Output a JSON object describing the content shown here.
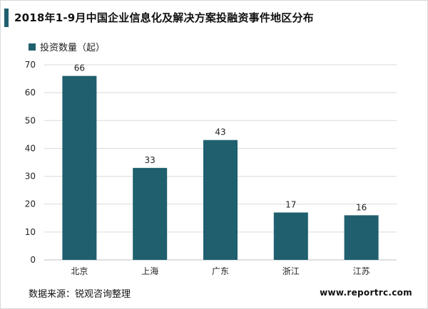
{
  "header": {
    "title": "2018年1-9月中国企业信息化及解决方案投融资事件地区分布"
  },
  "legend": {
    "label": "投资数量（起）"
  },
  "colors": {
    "bar": "#1f5f6e",
    "accent": "#1f5f6e",
    "grid": "#d9d9d9"
  },
  "chart_data": {
    "type": "bar",
    "categories": [
      "北京",
      "上海",
      "广东",
      "浙江",
      "江苏"
    ],
    "series": [
      {
        "name": "投资数量（起）",
        "values": [
          66,
          33,
          43,
          17,
          16
        ]
      }
    ],
    "ylim": [
      0,
      70
    ],
    "yticks": [
      0,
      10,
      20,
      30,
      40,
      50,
      60,
      70
    ],
    "grid": true,
    "legend_position": "top-left",
    "data_labels": true
  },
  "footer": {
    "source": "数据来源：锐观咨询整理",
    "site": "www.reportrc.com"
  }
}
